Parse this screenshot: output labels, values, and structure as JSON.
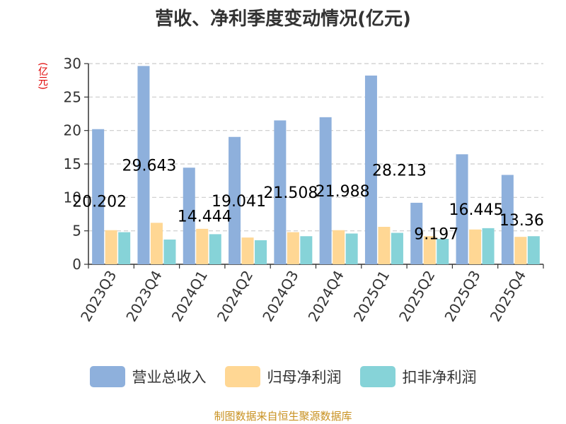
{
  "chart_data": {
    "type": "bar",
    "title": "营收、净利季度变动情况(亿元)",
    "ylabel": "(亿元)",
    "xlabel": "",
    "ylim": [
      0,
      30
    ],
    "yticks": [
      0,
      5,
      10,
      15,
      20,
      25,
      30
    ],
    "grid": true,
    "legend_position": "bottom",
    "categories": [
      "2023Q3",
      "2023Q4",
      "2024Q1",
      "2024Q2",
      "2024Q3",
      "2024Q4",
      "2025Q1",
      "2025Q2",
      "2025Q3",
      "2025Q4"
    ],
    "series": [
      {
        "name": "营业总收入",
        "color": "#8eb0dc",
        "values": [
          20.202,
          29.643,
          14.444,
          19.041,
          21.508,
          21.988,
          28.213,
          9.197,
          16.445,
          13.36
        ],
        "labels": [
          "20.202",
          "29.643",
          "14.444",
          "19.041",
          "21.508",
          "21.988",
          "28.213",
          "9.197",
          "16.445",
          "13.36"
        ]
      },
      {
        "name": "归母净利润",
        "color": "#ffd794",
        "values": [
          5.1,
          6.2,
          5.3,
          4.0,
          4.8,
          5.1,
          5.6,
          4.2,
          5.2,
          4.1
        ]
      },
      {
        "name": "扣非净利润",
        "color": "#86d3d8",
        "values": [
          4.8,
          3.7,
          4.5,
          3.6,
          4.2,
          4.6,
          4.7,
          3.8,
          5.4,
          4.2
        ]
      }
    ]
  },
  "source": "制图数据来自恒生聚源数据库"
}
